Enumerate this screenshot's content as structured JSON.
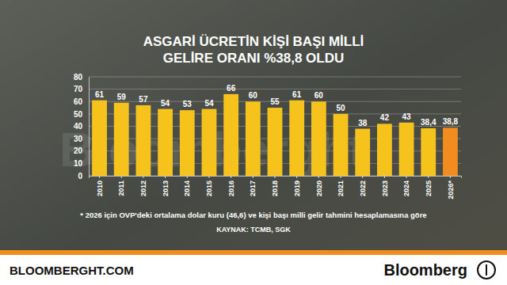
{
  "chart_data": {
    "type": "bar",
    "title": [
      "ASGARİ ÜCRETİN KİŞİ BAŞI MİLLİ",
      "GELİRE ORANI %38,8 OLDU"
    ],
    "categories": [
      "2010",
      "2011",
      "2012",
      "2013",
      "2014",
      "2015",
      "2016",
      "2017",
      "2018",
      "2019",
      "2020",
      "2021",
      "2022",
      "2023",
      "2024",
      "2025",
      "2026*"
    ],
    "values": [
      61,
      59,
      57,
      54,
      53,
      54,
      66,
      60,
      55,
      61,
      60,
      50,
      38,
      42,
      43,
      38.4,
      38.8
    ],
    "value_labels": [
      "61",
      "59",
      "57",
      "54",
      "53",
      "54",
      "66",
      "60",
      "55",
      "61",
      "60",
      "50",
      "38",
      "42",
      "43",
      "38,4",
      "38,8"
    ],
    "colors": [
      "#f6c21c",
      "#f6c21c",
      "#f6c21c",
      "#f6c21c",
      "#f6c21c",
      "#f6c21c",
      "#f6c21c",
      "#f6c21c",
      "#f6c21c",
      "#f6c21c",
      "#f6c21c",
      "#f6c21c",
      "#f6c21c",
      "#f6c21c",
      "#f6c21c",
      "#f6c21c",
      "#f28c1e"
    ],
    "ylim": [
      0,
      80
    ],
    "yticks": [
      0,
      10,
      20,
      30,
      40,
      50,
      60,
      70,
      80
    ],
    "grid": true,
    "data_labels": true,
    "annotations": [
      "* 2026 için OVP'deki ortalama dolar kuru (46,6) ve kişi başı milli gelir tahmini hesaplamasına göre",
      "KAYNAK: TCMB, SGK"
    ],
    "watermark": "Bloomberght"
  },
  "footer": {
    "site": "BLOOMBERGHT.COM",
    "brand": "Bloomberg"
  }
}
